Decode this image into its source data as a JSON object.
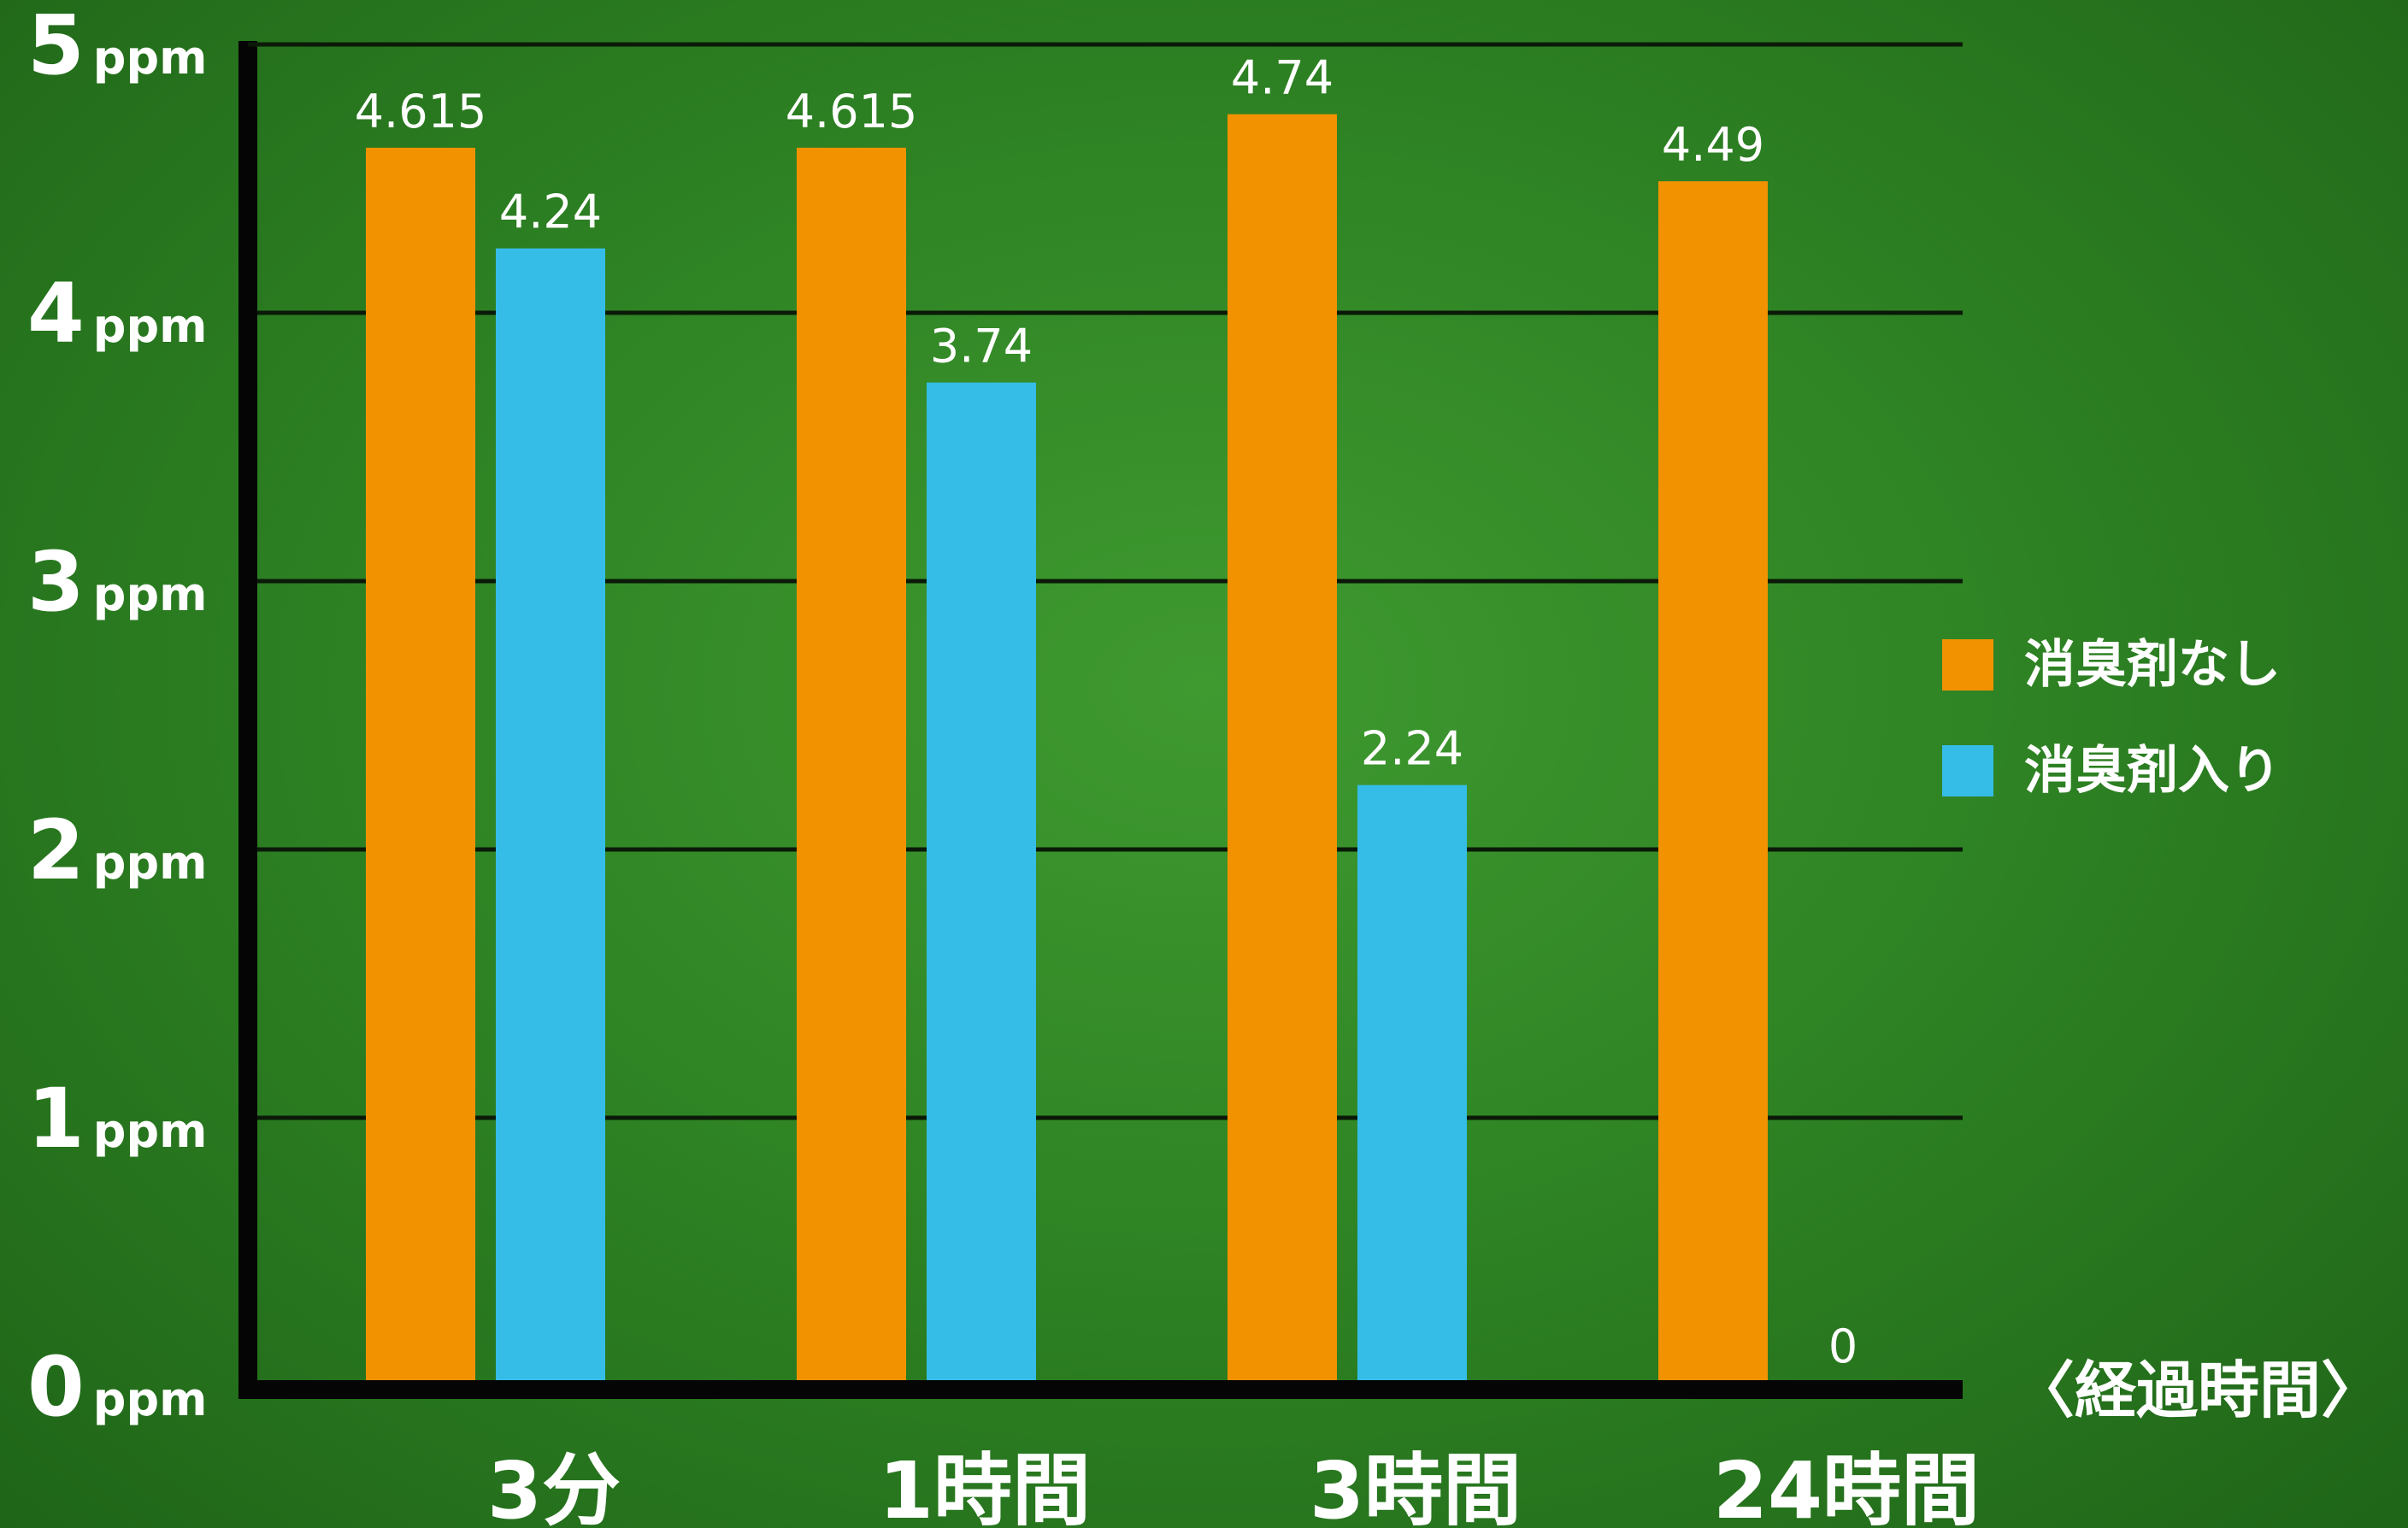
{
  "chart_data": {
    "type": "bar",
    "categories": [
      "3分",
      "1時間",
      "3時間",
      "24時間"
    ],
    "series": [
      {
        "name": "消臭剤なし",
        "color": "#f39200",
        "values": [
          4.615,
          4.615,
          4.74,
          4.49
        ],
        "labels": [
          "4.615",
          "4.615",
          "4.74",
          "4.49"
        ]
      },
      {
        "name": "消臭剤入り",
        "color": "#35bde8",
        "values": [
          4.24,
          3.74,
          2.24,
          0
        ],
        "labels": [
          "4.24",
          "3.74",
          "2.24",
          "0"
        ]
      }
    ],
    "yticks": [
      0,
      1,
      2,
      3,
      4,
      5
    ],
    "yunit": "ppm",
    "ylim": [
      0,
      5
    ],
    "xlabel": "〈経過時間〉",
    "grid": true,
    "legend_position": "right"
  }
}
